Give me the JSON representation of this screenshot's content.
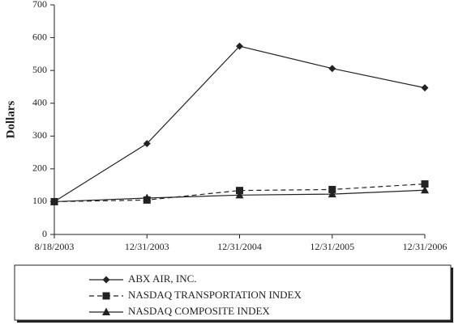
{
  "chart_data": {
    "type": "line",
    "y_label": "Dollars",
    "categories": [
      "8/18/2003",
      "12/31/2003",
      "12/31/2004",
      "12/31/2005",
      "12/31/2006"
    ],
    "series": [
      {
        "name": "ABX AIR, INC.",
        "color": "#222222",
        "dash": "solid",
        "marker": "diamond",
        "values": [
          100,
          277,
          574,
          506,
          447
        ]
      },
      {
        "name": "NASDAQ TRANSPORTATION INDEX",
        "color": "#222222",
        "dash": "dashed",
        "marker": "square",
        "values": [
          100,
          105,
          134,
          137,
          154
        ]
      },
      {
        "name": "NASDAQ COMPOSITE INDEX",
        "color": "#222222",
        "dash": "solid",
        "marker": "triangle",
        "values": [
          100,
          111,
          120,
          123,
          135
        ]
      }
    ],
    "ylim": [
      0,
      700
    ],
    "yticks": [
      0,
      100,
      200,
      300,
      400,
      500,
      600,
      700
    ],
    "grid": false,
    "legend": "bottom"
  }
}
